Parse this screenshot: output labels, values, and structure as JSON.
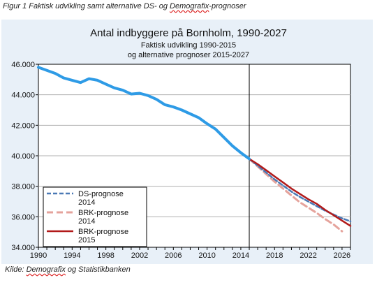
{
  "figure": {
    "caption_prefix": "Figur 1 Faktisk udvikling samt alternative DS- og ",
    "caption_underlined": "Demografix",
    "caption_suffix": "-prognoser",
    "source_prefix": "Kilde: ",
    "source_underlined": "Demografix",
    "source_suffix": " og Statistikbanken"
  },
  "colors": {
    "plot_background": "#ffffff",
    "chart_background": "#e8f0f8",
    "actual": "#2e9be6",
    "ds_2014": "#4a79b5",
    "brk_2014": "#e5a39c",
    "brk_2015": "#b21a1a"
  },
  "chart_data": {
    "type": "line",
    "title": "Antal indbyggere på Bornholm, 1990-2027",
    "subtitle_line1": "Faktisk udvikling  1990-2015",
    "subtitle_line2": "og alternative  prognoser  2015-2027",
    "xlim": [
      1990,
      2027
    ],
    "ylim": [
      34000,
      46000
    ],
    "x_ticks": [
      1990,
      1994,
      1998,
      2002,
      2006,
      2010,
      2014,
      2018,
      2022,
      2026
    ],
    "y_ticks": [
      34000,
      36000,
      38000,
      40000,
      42000,
      44000,
      46000
    ],
    "y_tick_labels": [
      "34.000",
      "36.000",
      "38.000",
      "40.000",
      "42.000",
      "44.000",
      "46.000"
    ],
    "vertical_marker_x": 2015,
    "grid": "horizontal",
    "legend_position": "bottom-left",
    "series": [
      {
        "key": "actual",
        "x": [
          1990,
          1991,
          1992,
          1993,
          1994,
          1995,
          1996,
          1997,
          1998,
          1999,
          2000,
          2001,
          2002,
          2003,
          2004,
          2005,
          2006,
          2007,
          2008,
          2009,
          2010,
          2011,
          2012,
          2013,
          2014,
          2015
        ],
        "values": [
          45800,
          45600,
          45400,
          45100,
          44950,
          44800,
          45050,
          44950,
          44700,
          44450,
          44300,
          44050,
          44100,
          43950,
          43700,
          43350,
          43200,
          43000,
          42750,
          42500,
          42100,
          41750,
          41200,
          40650,
          40200,
          39800
        ],
        "style": "solid"
      },
      {
        "key": "ds_2014",
        "name": "DS-prognose 2014",
        "x": [
          2015,
          2016,
          2017,
          2018,
          2019,
          2020,
          2021,
          2022,
          2023,
          2024,
          2025,
          2026,
          2027
        ],
        "values": [
          39800,
          39350,
          38900,
          38450,
          38050,
          37650,
          37300,
          37000,
          36700,
          36400,
          36150,
          35900,
          35700
        ],
        "style": "dashed"
      },
      {
        "key": "brk_2014",
        "name": "BRK-prognose 2014",
        "x": [
          2015,
          2016,
          2017,
          2018,
          2019,
          2020,
          2021,
          2022,
          2023,
          2024,
          2025,
          2026
        ],
        "values": [
          39800,
          39300,
          38800,
          38300,
          37850,
          37400,
          36950,
          36600,
          36250,
          35850,
          35500,
          35050
        ],
        "style": "dashed"
      },
      {
        "key": "brk_2015",
        "name": "BRK-prognose 2015",
        "x": [
          2015,
          2016,
          2017,
          2018,
          2019,
          2020,
          2021,
          2022,
          2023,
          2024,
          2025,
          2026,
          2027
        ],
        "values": [
          39800,
          39450,
          39050,
          38650,
          38250,
          37850,
          37500,
          37150,
          36850,
          36450,
          36100,
          35750,
          35400
        ],
        "style": "solid"
      }
    ],
    "legend": [
      {
        "series_key": "ds_2014",
        "line1": "DS-prognose",
        "line2": "2014"
      },
      {
        "series_key": "brk_2014",
        "line1": "BRK-prognose",
        "line2": "2014"
      },
      {
        "series_key": "brk_2015",
        "line1": "BRK-prognose",
        "line2": "2015"
      }
    ]
  }
}
